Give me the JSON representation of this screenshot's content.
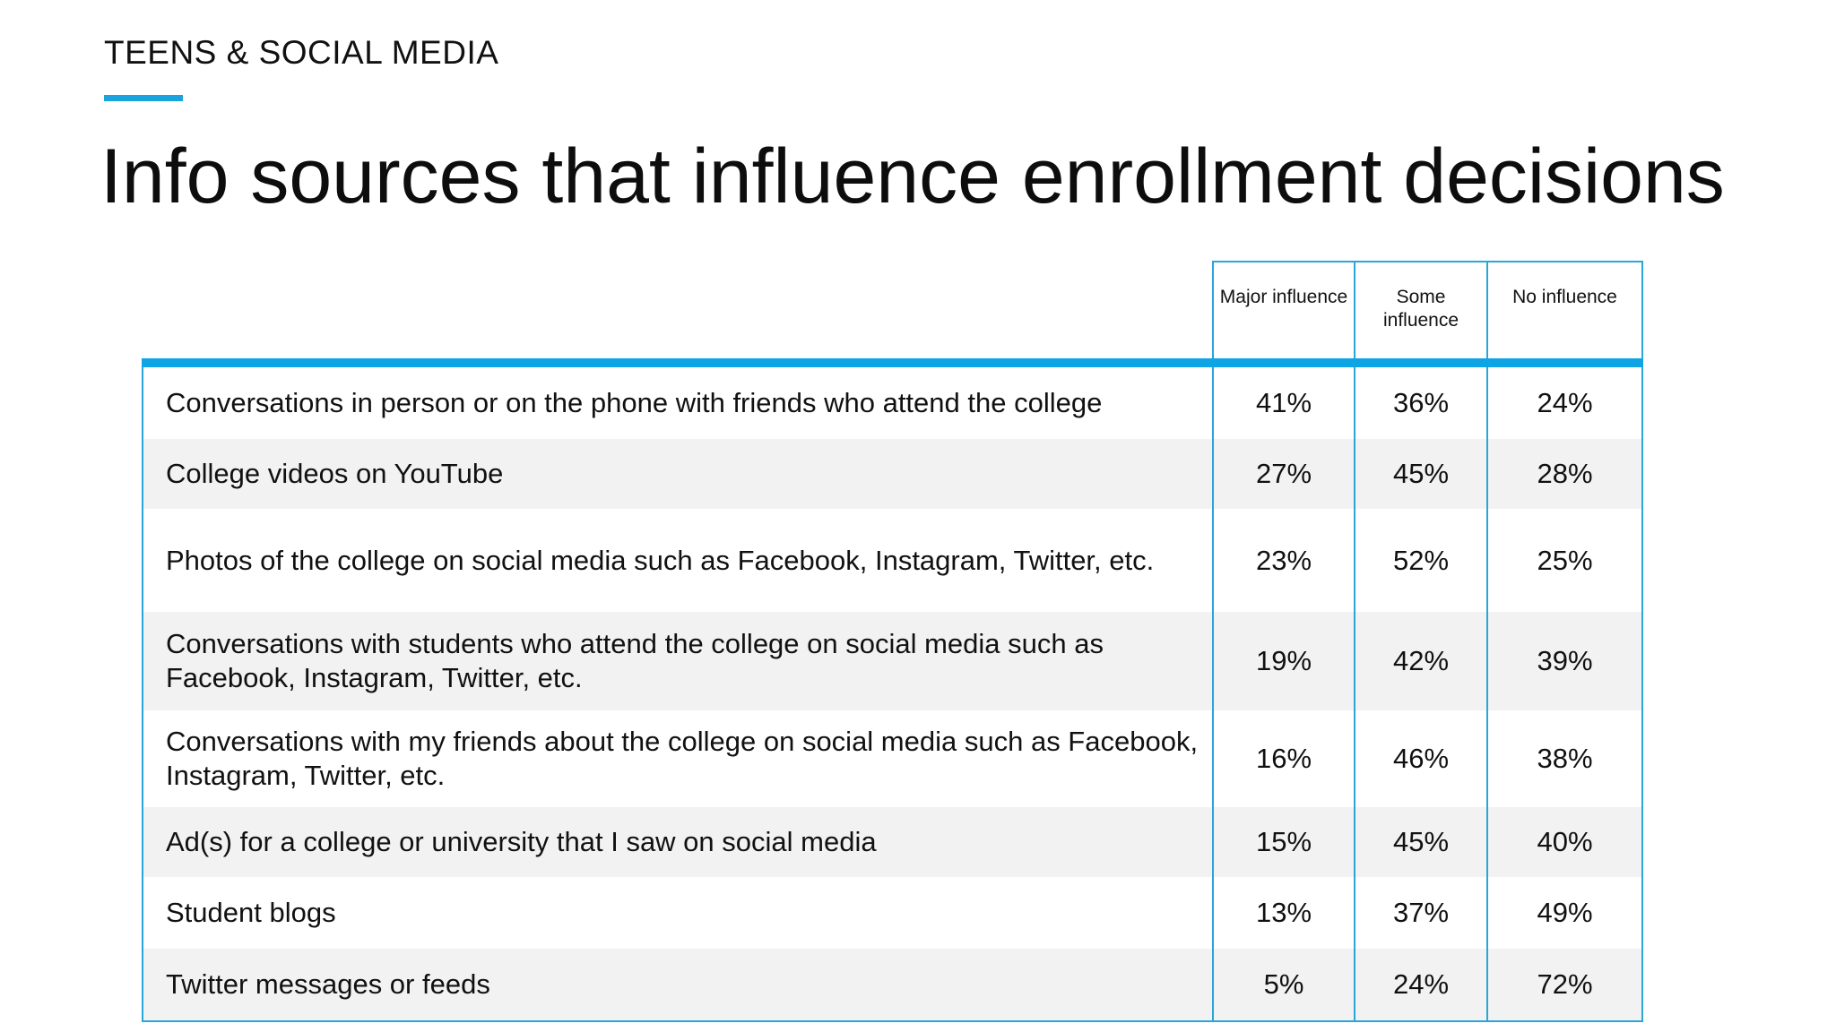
{
  "header": {
    "kicker": "TEENS & SOCIAL MEDIA",
    "title": "Info sources that influence enrollment decisions"
  },
  "colors": {
    "accent": "#0fa5e4",
    "border": "#2aa6d6",
    "row_shade": "#f2f2f2"
  },
  "chart_data": {
    "type": "table",
    "title": "Info sources that influence enrollment decisions",
    "columns": [
      "Major influence",
      "Some influence",
      "No influence"
    ],
    "rows": [
      {
        "label": "Conversations in person or on the phone with friends who attend the college",
        "values": [
          "41%",
          "36%",
          "24%"
        ]
      },
      {
        "label": "College videos on YouTube",
        "values": [
          "27%",
          "45%",
          "28%"
        ]
      },
      {
        "label": "Photos of the college on social media such as Facebook, Instagram, Twitter, etc.",
        "values": [
          "23%",
          "52%",
          "25%"
        ]
      },
      {
        "label": "Conversations with students who attend the college on social media such as Facebook, Instagram, Twitter, etc.",
        "values": [
          "19%",
          "42%",
          "39%"
        ]
      },
      {
        "label": "Conversations with my friends about the college on social media such as Facebook, Instagram, Twitter, etc.",
        "values": [
          "16%",
          "46%",
          "38%"
        ]
      },
      {
        "label": "Ad(s) for a college or university that I saw on social media",
        "values": [
          "15%",
          "45%",
          "40%"
        ]
      },
      {
        "label": "Student blogs",
        "values": [
          "13%",
          "37%",
          "49%"
        ]
      },
      {
        "label": "Twitter messages or feeds",
        "values": [
          "5%",
          "24%",
          "72%"
        ]
      }
    ]
  }
}
